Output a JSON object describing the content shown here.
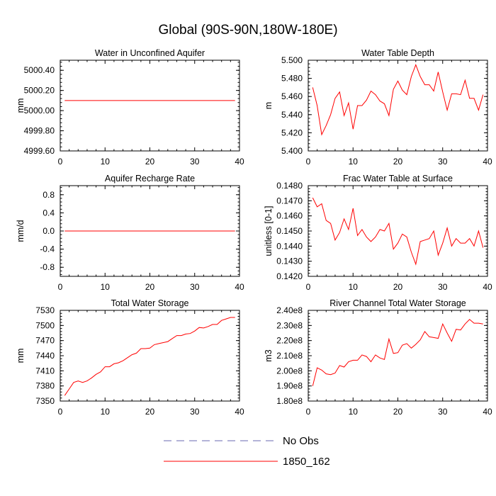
{
  "figure": {
    "title": "Global (90S-90N,180W-180E)"
  },
  "legend": [
    {
      "label": "No Obs",
      "color": "#6a6ab0",
      "dash": true
    },
    {
      "label": "1850_162",
      "color": "#ff0000",
      "dash": false
    }
  ],
  "chart_data": [
    {
      "type": "line",
      "title": "Water in Unconfined Aquifer",
      "ylabel": "mm",
      "xlim": [
        0,
        40
      ],
      "ylim": [
        4999.6,
        5000.5
      ],
      "xticks": [
        0,
        10,
        20,
        30,
        40
      ],
      "yticks": [
        4999.6,
        4999.8,
        5000.0,
        5000.2,
        5000.4
      ],
      "ytick_labels": [
        "4999.60",
        "4999.80",
        "5000.00",
        "5000.20",
        "5000.40"
      ],
      "series": [
        {
          "name": "1850_162",
          "color": "#ff0000",
          "x": [
            1,
            2,
            3,
            4,
            5,
            6,
            7,
            8,
            9,
            10,
            11,
            12,
            13,
            14,
            15,
            16,
            17,
            18,
            19,
            20,
            21,
            22,
            23,
            24,
            25,
            26,
            27,
            28,
            29,
            30,
            31,
            32,
            33,
            34,
            35,
            36,
            37,
            38,
            39
          ],
          "y": [
            5000.1,
            5000.1,
            5000.1,
            5000.1,
            5000.1,
            5000.1,
            5000.1,
            5000.1,
            5000.1,
            5000.1,
            5000.1,
            5000.1,
            5000.1,
            5000.1,
            5000.1,
            5000.1,
            5000.1,
            5000.1,
            5000.1,
            5000.1,
            5000.1,
            5000.1,
            5000.1,
            5000.1,
            5000.1,
            5000.1,
            5000.1,
            5000.1,
            5000.1,
            5000.1,
            5000.1,
            5000.1,
            5000.1,
            5000.1,
            5000.1,
            5000.1,
            5000.1,
            5000.1,
            5000.1
          ]
        }
      ]
    },
    {
      "type": "line",
      "title": "Water Table Depth",
      "ylabel": "m",
      "xlim": [
        0,
        40
      ],
      "ylim": [
        5.4,
        5.5
      ],
      "xticks": [
        0,
        10,
        20,
        30,
        40
      ],
      "yticks": [
        5.4,
        5.42,
        5.44,
        5.46,
        5.48,
        5.5
      ],
      "ytick_labels": [
        "5.400",
        "5.420",
        "5.440",
        "5.460",
        "5.480",
        "5.500"
      ],
      "series": [
        {
          "name": "1850_162",
          "color": "#ff0000",
          "x": [
            1,
            2,
            3,
            4,
            5,
            6,
            7,
            8,
            9,
            10,
            11,
            12,
            13,
            14,
            15,
            16,
            17,
            18,
            19,
            20,
            21,
            22,
            23,
            24,
            25,
            26,
            27,
            28,
            29,
            30,
            31,
            32,
            33,
            34,
            35,
            36,
            37,
            38,
            39
          ],
          "y": [
            5.47,
            5.45,
            5.418,
            5.428,
            5.44,
            5.458,
            5.465,
            5.439,
            5.453,
            5.424,
            5.45,
            5.45,
            5.456,
            5.466,
            5.462,
            5.455,
            5.452,
            5.439,
            5.468,
            5.477,
            5.467,
            5.462,
            5.482,
            5.495,
            5.482,
            5.473,
            5.473,
            5.466,
            5.487,
            5.465,
            5.445,
            5.463,
            5.463,
            5.462,
            5.478,
            5.458,
            5.458,
            5.445,
            5.462
          ]
        }
      ]
    },
    {
      "type": "line",
      "title": "Aquifer Recharge Rate",
      "ylabel": "mm/d",
      "xlim": [
        0,
        40
      ],
      "ylim": [
        -1.0,
        1.0
      ],
      "xticks": [
        0,
        10,
        20,
        30,
        40
      ],
      "yticks": [
        -0.8,
        -0.4,
        0.0,
        0.4,
        0.8
      ],
      "ytick_labels": [
        "-0.8",
        "-0.4",
        "0.0",
        "0.4",
        "0.8"
      ],
      "series": [
        {
          "name": "1850_162",
          "color": "#ff0000",
          "x": [
            1,
            2,
            3,
            4,
            5,
            6,
            7,
            8,
            9,
            10,
            11,
            12,
            13,
            14,
            15,
            16,
            17,
            18,
            19,
            20,
            21,
            22,
            23,
            24,
            25,
            26,
            27,
            28,
            29,
            30,
            31,
            32,
            33,
            34,
            35,
            36,
            37,
            38,
            39
          ],
          "y": [
            0,
            0,
            0,
            0,
            0,
            0,
            0,
            0,
            0,
            0,
            0,
            0,
            0,
            0,
            0,
            0,
            0,
            0,
            0,
            0,
            0,
            0,
            0,
            0,
            0,
            0,
            0,
            0,
            0,
            0,
            0,
            0,
            0,
            0,
            0,
            0,
            0,
            0,
            0
          ]
        }
      ]
    },
    {
      "type": "line",
      "title": "Frac Water Table at Surface",
      "ylabel": "unitless [0-1]",
      "xlim": [
        0,
        40
      ],
      "ylim": [
        0.142,
        0.148
      ],
      "xticks": [
        0,
        10,
        20,
        30,
        40
      ],
      "yticks": [
        0.142,
        0.143,
        0.144,
        0.145,
        0.146,
        0.147,
        0.148
      ],
      "ytick_labels": [
        "0.1420",
        "0.1430",
        "0.1440",
        "0.1450",
        "0.1460",
        "0.1470",
        "0.1480"
      ],
      "series": [
        {
          "name": "1850_162",
          "color": "#ff0000",
          "x": [
            1,
            2,
            3,
            4,
            5,
            6,
            7,
            8,
            9,
            10,
            11,
            12,
            13,
            14,
            15,
            16,
            17,
            18,
            19,
            20,
            21,
            22,
            23,
            24,
            25,
            26,
            27,
            28,
            29,
            30,
            31,
            32,
            33,
            34,
            35,
            36,
            37,
            38,
            39
          ],
          "y": [
            0.1472,
            0.1466,
            0.1468,
            0.1457,
            0.1455,
            0.1444,
            0.1449,
            0.1458,
            0.1451,
            0.1465,
            0.1447,
            0.1451,
            0.1446,
            0.1443,
            0.1446,
            0.1451,
            0.145,
            0.1455,
            0.1438,
            0.1442,
            0.1448,
            0.1446,
            0.1436,
            0.1428,
            0.1443,
            0.1444,
            0.1445,
            0.145,
            0.1434,
            0.1442,
            0.1452,
            0.144,
            0.1445,
            0.1442,
            0.1442,
            0.1445,
            0.144,
            0.145,
            0.1439
          ]
        }
      ]
    },
    {
      "type": "line",
      "title": "Total Water Storage",
      "ylabel": "mm",
      "xlim": [
        0,
        40
      ],
      "ylim": [
        7350,
        7530
      ],
      "xticks": [
        0,
        10,
        20,
        30,
        40
      ],
      "yticks": [
        7350,
        7380,
        7410,
        7440,
        7470,
        7500,
        7530
      ],
      "ytick_labels": [
        "7350",
        "7380",
        "7410",
        "7440",
        "7470",
        "7500",
        "7530"
      ],
      "series": [
        {
          "name": "1850_162",
          "color": "#ff0000",
          "x": [
            1,
            2,
            3,
            4,
            5,
            6,
            7,
            8,
            9,
            10,
            11,
            12,
            13,
            14,
            15,
            16,
            17,
            18,
            19,
            20,
            21,
            22,
            23,
            24,
            25,
            26,
            27,
            28,
            29,
            30,
            31,
            32,
            33,
            34,
            35,
            36,
            37,
            38,
            39
          ],
          "y": [
            7361,
            7374,
            7387,
            7390,
            7387,
            7390,
            7396,
            7403,
            7408,
            7418,
            7418,
            7424,
            7426,
            7430,
            7436,
            7442,
            7445,
            7454,
            7454,
            7455,
            7462,
            7464,
            7466,
            7468,
            7474,
            7480,
            7480,
            7483,
            7484,
            7489,
            7496,
            7495,
            7498,
            7502,
            7502,
            7510,
            7513,
            7516,
            7516
          ]
        }
      ]
    },
    {
      "type": "line",
      "title": "River Channel Total Water Storage",
      "ylabel": "m3",
      "xlim": [
        0,
        40
      ],
      "ylim": [
        180000000,
        240000000
      ],
      "xticks": [
        0,
        10,
        20,
        30,
        40
      ],
      "yticks": [
        180000000,
        190000000,
        200000000,
        210000000,
        220000000,
        230000000,
        240000000
      ],
      "ytick_labels": [
        "1.80e8",
        "1.90e8",
        "2.00e8",
        "2.10e8",
        "2.20e8",
        "2.30e8",
        "2.40e8"
      ],
      "series": [
        {
          "name": "1850_162",
          "color": "#ff0000",
          "x": [
            1,
            2,
            3,
            4,
            5,
            6,
            7,
            8,
            9,
            10,
            11,
            12,
            13,
            14,
            15,
            16,
            17,
            18,
            19,
            20,
            21,
            22,
            23,
            24,
            25,
            26,
            27,
            28,
            29,
            30,
            31,
            32,
            33,
            34,
            35,
            36,
            37,
            38,
            39
          ],
          "y": [
            190000000,
            202000000,
            200500000,
            198000000,
            197500000,
            198500000,
            203500000,
            202500000,
            206000000,
            207000000,
            207000000,
            210500000,
            209500000,
            206000000,
            210500000,
            208500000,
            207500000,
            221000000,
            211500000,
            212000000,
            217000000,
            218000000,
            215000000,
            217500000,
            220500000,
            226000000,
            222500000,
            222000000,
            221500000,
            231000000,
            225000000,
            219500000,
            227500000,
            227000000,
            231000000,
            234000000,
            231500000,
            231500000,
            231000000
          ]
        }
      ]
    }
  ]
}
